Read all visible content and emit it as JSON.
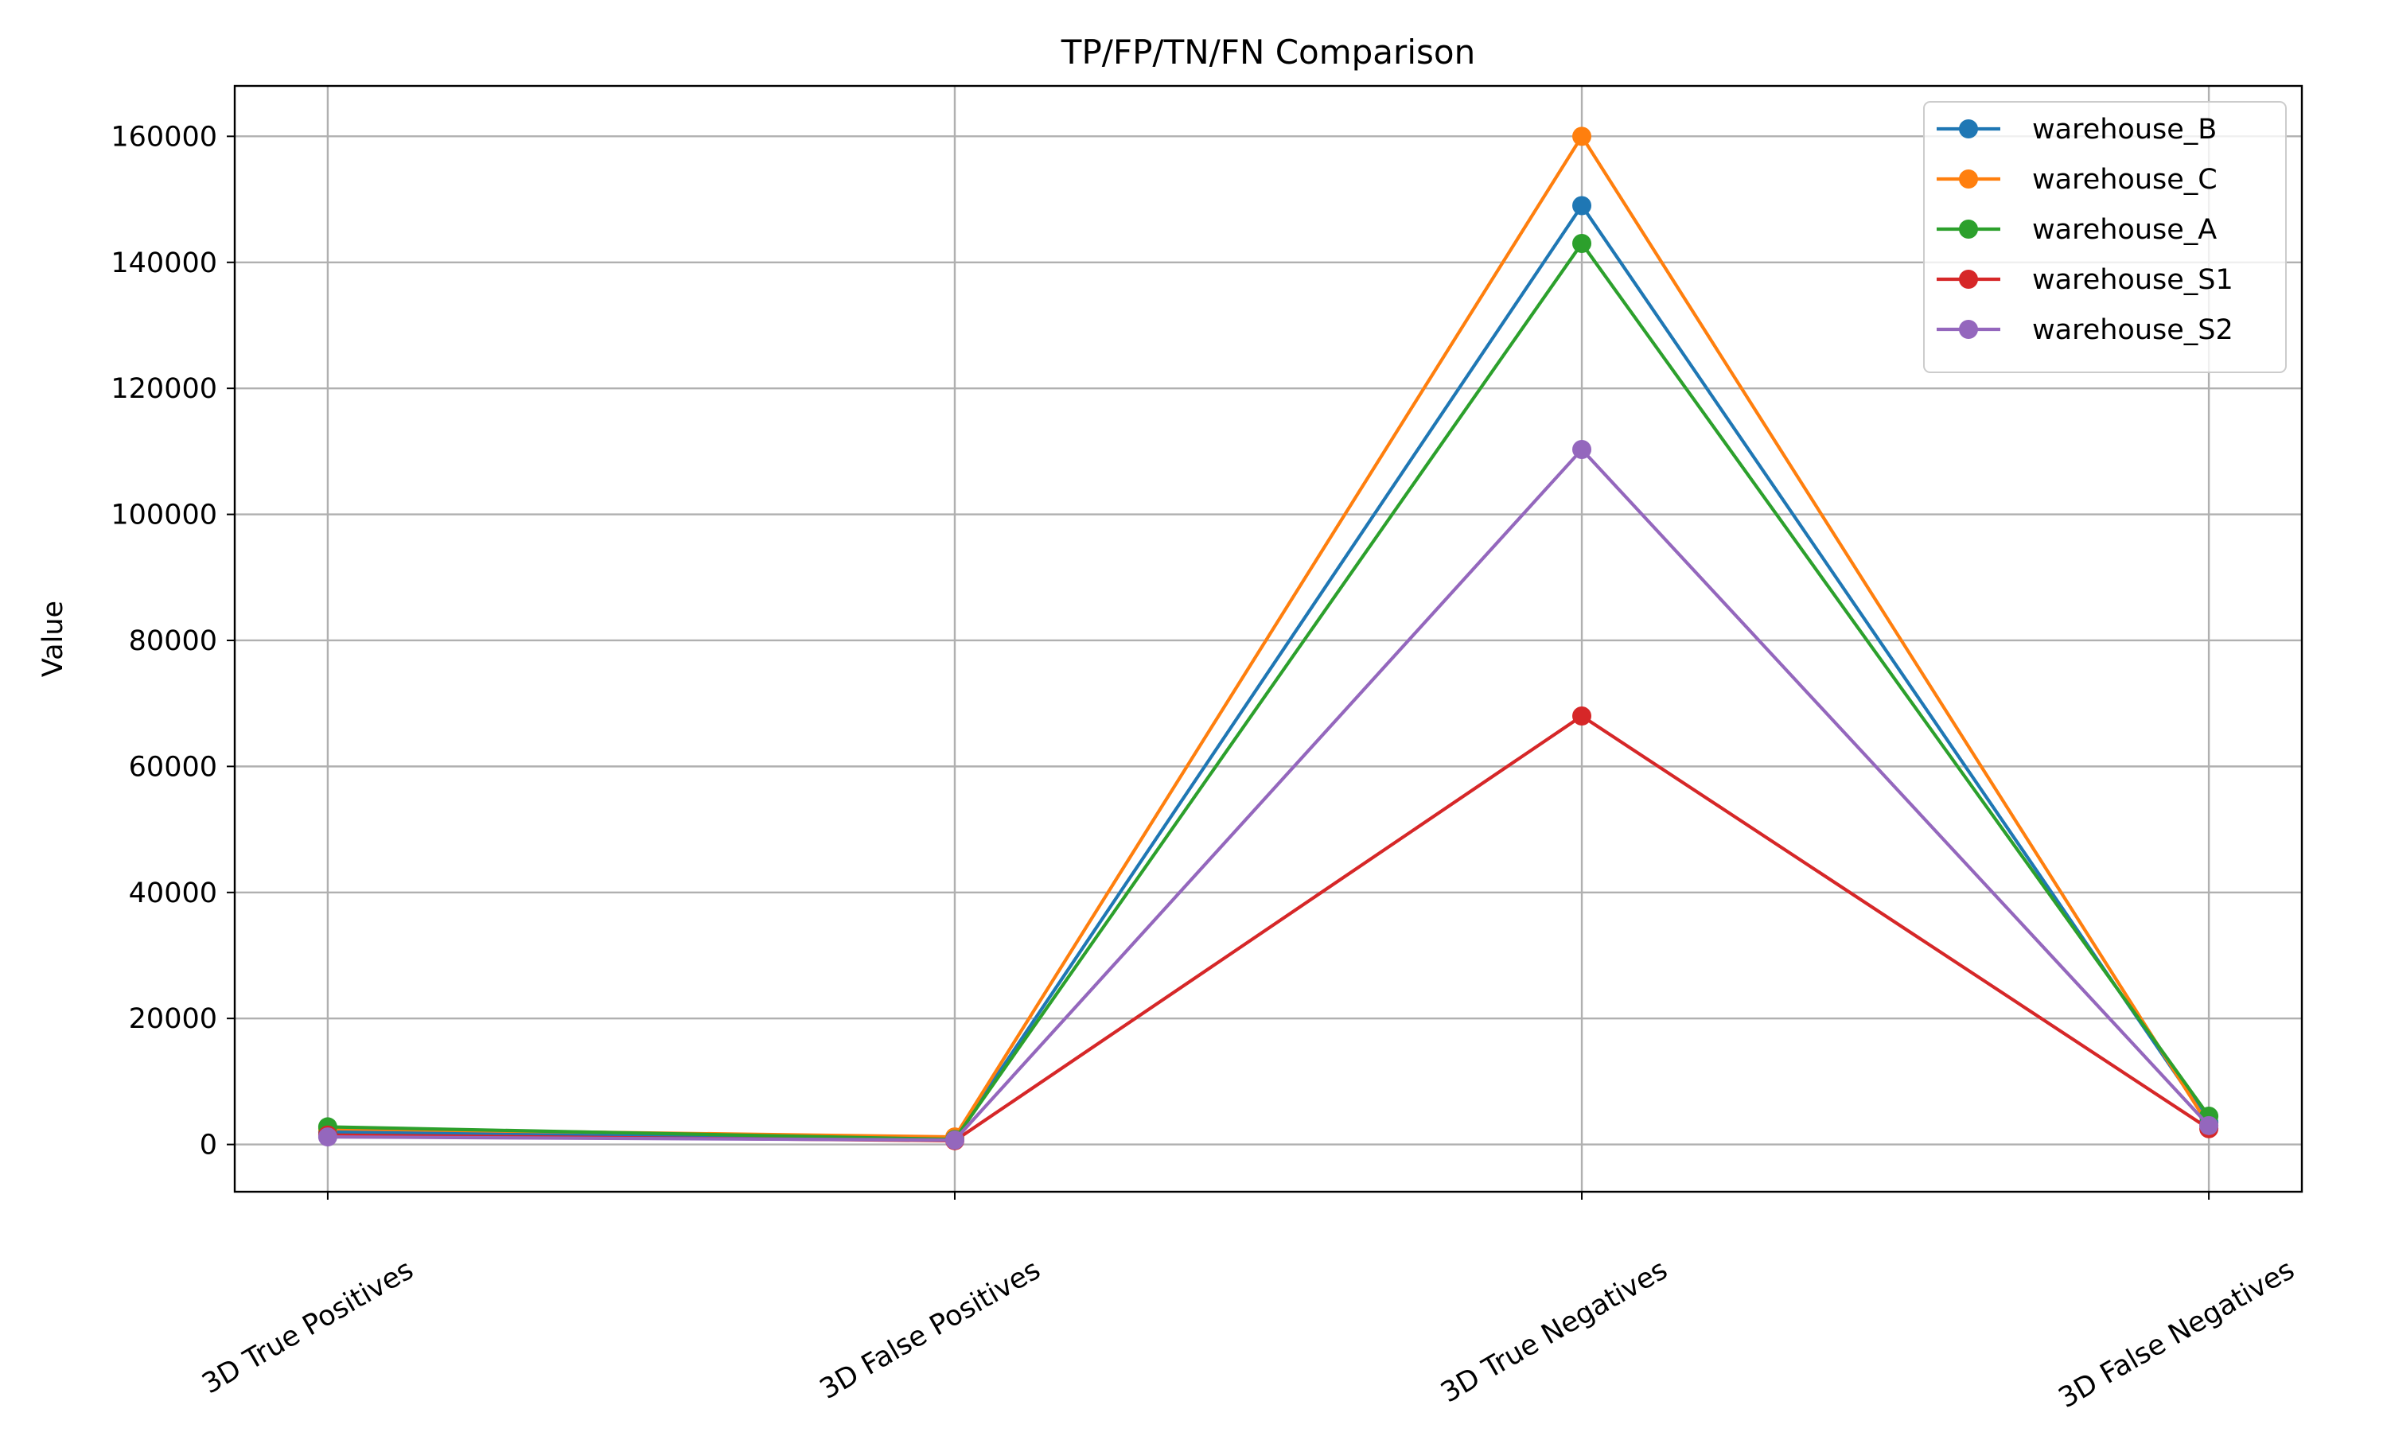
{
  "chart_data": {
    "type": "line",
    "title": "TP/FP/TN/FN Comparison",
    "xlabel": "",
    "ylabel": "Value",
    "categories": [
      "3D True Positives",
      "3D False Positives",
      "3D True Negatives",
      "3D False Negatives"
    ],
    "ylim": [
      -7500,
      168000
    ],
    "yticks": [
      0,
      20000,
      40000,
      60000,
      80000,
      100000,
      120000,
      140000,
      160000
    ],
    "grid": true,
    "legend_position": "top-right",
    "series": [
      {
        "name": "warehouse_B",
        "color": "#1f77b4",
        "values": [
          2000,
          1000,
          149000,
          3500
        ]
      },
      {
        "name": "warehouse_C",
        "color": "#ff7f0e",
        "values": [
          2500,
          1200,
          160000,
          3000
        ]
      },
      {
        "name": "warehouse_A",
        "color": "#2ca02c",
        "values": [
          2800,
          800,
          143000,
          4500
        ]
      },
      {
        "name": "warehouse_S1",
        "color": "#d62728",
        "values": [
          1500,
          600,
          68000,
          2500
        ]
      },
      {
        "name": "warehouse_S2",
        "color": "#9467bd",
        "values": [
          1200,
          700,
          110300,
          3000
        ]
      }
    ]
  }
}
